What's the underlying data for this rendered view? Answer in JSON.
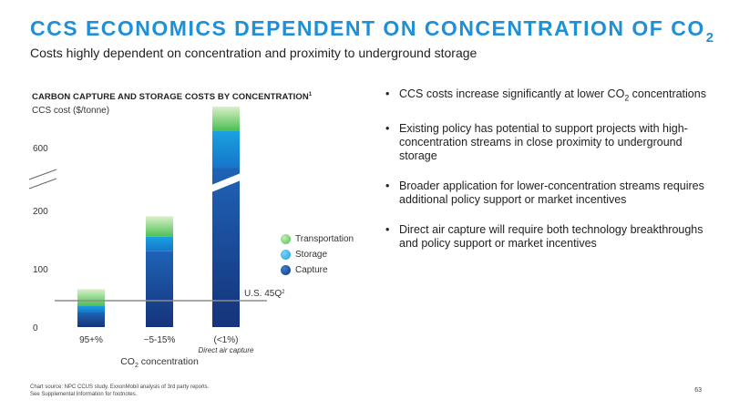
{
  "title_main": "CCS ECONOMICS DEPENDENT ON CONCENTRATION OF CO",
  "title_sub": "2",
  "subtitle": "Costs highly dependent on concentration and proximity to underground storage",
  "chart_title": "CARBON CAPTURE AND STORAGE COSTS BY CONCENTRATION",
  "chart_title_footnote": "1",
  "y_axis_label": "CCS cost ($/tonne)",
  "colors": {
    "title": "#1f8fd6",
    "transportation": "#5cc85a",
    "storage": "#1ea3e0",
    "capture": "#1c4fa0",
    "reference_line": "#999999"
  },
  "chart_data": {
    "type": "bar",
    "stacked": true,
    "broken_axis": true,
    "categories": [
      "95+%",
      "~5-15%",
      "(<1%)"
    ],
    "category_notes": [
      "",
      "",
      "Direct air capture"
    ],
    "y_ticks": [
      0,
      100,
      200,
      600
    ],
    "series": [
      {
        "name": "Capture",
        "values": [
          25,
          130,
          570
        ]
      },
      {
        "name": "Storage",
        "values": [
          12,
          25,
          55
        ]
      },
      {
        "name": "Transportation",
        "values": [
          28,
          35,
          35
        ]
      }
    ],
    "reference_line": {
      "label": "U.S. 45Q",
      "label_sup": "2",
      "value": 50
    },
    "x_axis_label": "CO",
    "x_axis_label_sub": "2",
    "x_axis_label_rest": " concentration",
    "legend": [
      "Transportation",
      "Storage",
      "Capture"
    ],
    "legend_position": "right"
  },
  "bullets": [
    {
      "pre": "CCS costs increase significantly at lower CO",
      "sub": "2",
      "post": " concentrations"
    },
    {
      "pre": "Existing policy has potential to support projects with high-concentration streams in close proximity to underground storage",
      "sub": "",
      "post": ""
    },
    {
      "pre": "Broader application for lower-concentration streams requires additional policy support or market incentives",
      "sub": "",
      "post": ""
    },
    {
      "pre": "Direct air capture will require both technology breakthroughs and policy support or market incentives",
      "sub": "",
      "post": ""
    }
  ],
  "footnote_line1": "Chart source: NPC CCUS study. ExxonMobil analysis of 3rd party reports.",
  "footnote_line2": "See Supplemental Information for footnotes.",
  "page_number": "63"
}
